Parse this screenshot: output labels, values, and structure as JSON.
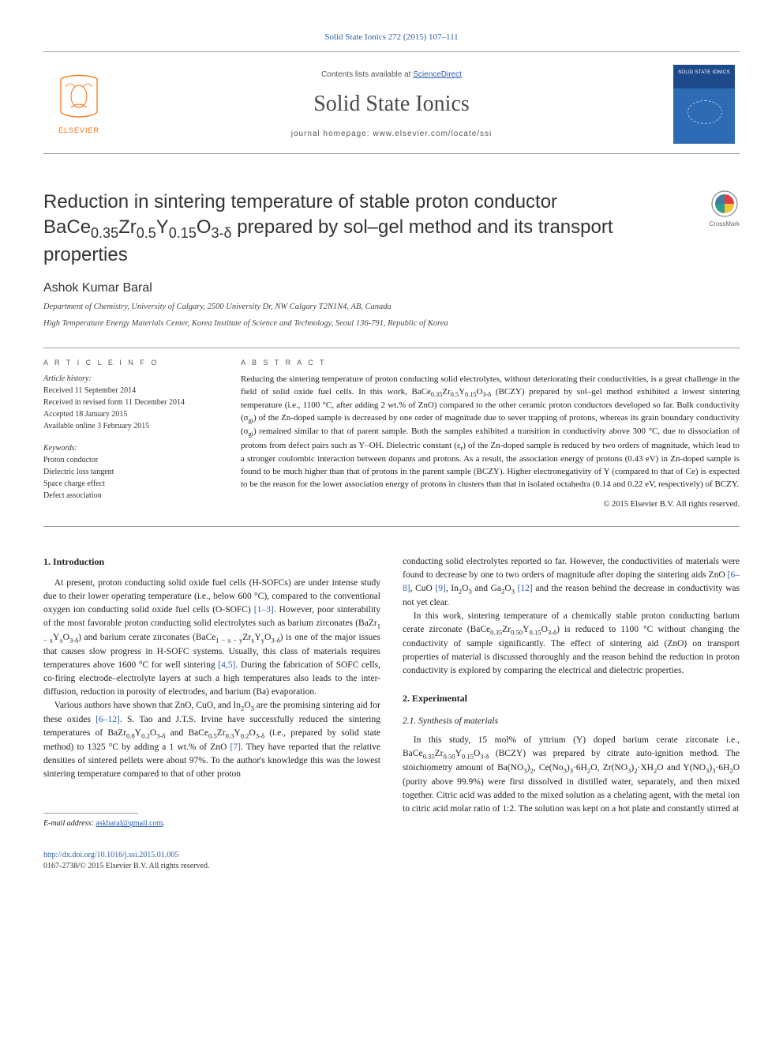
{
  "top_citation": "Solid State Ionics 272 (2015) 107–111",
  "masthead": {
    "contents_prefix": "Contents lists available at ",
    "contents_link": "ScienceDirect",
    "journal_name": "Solid State Ionics",
    "homepage_prefix": "journal homepage: ",
    "homepage_url": "www.elsevier.com/locate/ssi",
    "cover_label": "SOLID STATE IONICS"
  },
  "title_html": "Reduction in sintering temperature of stable proton conductor BaCe<sub>0.35</sub>Zr<sub>0.5</sub>Y<sub>0.15</sub>O<sub>3-δ</sub> prepared by sol–gel method and its transport properties",
  "crossmark_label": "CrossMark",
  "author": "Ashok Kumar Baral",
  "affiliations": [
    "Department of Chemistry, University of Calgary, 2500 University Dr, NW Calgary T2N1N4, AB, Canada",
    "High Temperature Energy Materials Center, Korea Institute of Science and Technology, Seoul 136-791, Republic of Korea"
  ],
  "info": {
    "heading": "A R T I C L E   I N F O",
    "history_label": "Article history:",
    "history": [
      "Received 11 September 2014",
      "Received in revised form 11 December 2014",
      "Accepted 18 January 2015",
      "Available online 3 February 2015"
    ],
    "keywords_label": "Keywords:",
    "keywords": [
      "Proton conductor",
      "Dielectric loss tangent",
      "Space charge effect",
      "Defect association"
    ]
  },
  "abstract": {
    "heading": "A B S T R A C T",
    "text_html": "Reducing the sintering temperature of proton conducting solid electrolytes, without deteriorating their conductivities, is a great challenge in the field of solid oxide fuel cells. In this work, BaCe<sub>0.35</sub>Zr<sub>0.5</sub>Y<sub>0.15</sub>O<sub>3-δ</sub> (BCZY) prepared by sol–gel method exhibited a lowest sintering temperature (i.e., 1100 °C, after adding 2 wt.% of ZnO) compared to the other ceramic proton conductors developed so far. Bulk conductivity (σ<sub>gi</sub>) of the Zn-doped sample is decreased by one order of magnitude due to sever trapping of protons, whereas its grain boundary conductivity (σ<sub>gi</sub>) remained similar to that of parent sample. Both the samples exhibited a transition in conductivity above 300 °C, due to dissociation of protons from defect pairs such as Y–OH. Dielectric constant (ε<sub>r</sub>) of the Zn-doped sample is reduced by two orders of magnitude, which lead to a stronger coulombic interaction between dopants and protons. As a result, the association energy of protons (0.43 eV) in Zn-doped sample is found to be much higher than that of protons in the parent sample (BCZY). Higher electronegativity of Y (compared to that of Ce) is expected to be the reason for the lower association energy of protons in clusters than that in isolated octahedra (0.14 and 0.22 eV, respectively) of BCZY.",
    "copyright": "© 2015 Elsevier B.V. All rights reserved."
  },
  "sections": {
    "intro_head": "1. Introduction",
    "intro_p1_html": "At present, proton conducting solid oxide fuel cells (H-SOFCs) are under intense study due to their lower operating temperature (i.e., below 600 °C), compared to the conventional oxygen ion conducting solid oxide fuel cells (O-SOFC) <span class=\"ref-link\">[1–3]</span>. However, poor sinterability of the most favorable proton conducting solid electrolytes such as barium zirconates (BaZr<sub>1 − x</sub>Y<sub>x</sub>O<sub>3-δ</sub>) and barium cerate zirconates (BaCe<sub>1 − x − y</sub>Zr<sub>x</sub>Y<sub>y</sub>O<sub>3-δ</sub>) is one of the major issues that causes slow progress in H-SOFC systems. Usually, this class of materials requires temperatures above 1600 °C for well sintering <span class=\"ref-link\">[4,5]</span>. During the fabrication of SOFC cells, co-firing electrode–electrolyte layers at such a high temperatures also leads to the inter-diffusion, reduction in porosity of electrodes, and barium (Ba) evaporation.",
    "intro_p2_html": "Various authors have shown that ZnO, CuO, and In<sub>2</sub>O<sub>3</sub> are the promising sintering aid for these oxides <span class=\"ref-link\">[6–12]</span>. S. Tao and J.T.S. Irvine have successfully reduced the sintering temperatures of BaZr<sub>0.8</sub>Y<sub>0.2</sub>O<sub>3-δ</sub> and BaCe<sub>0.5</sub>Zr<sub>0.3</sub>Y<sub>0.2</sub>O<sub>3-δ</sub> (i.e., prepared by solid state method) to 1325 °C by adding a 1 wt.% of ZnO <span class=\"ref-link\">[7]</span>. They have reported that the relative densities of sintered pellets were about 97%. To the author's knowledge this was the lowest sintering temperature compared to that of other proton",
    "col2_p1_html": "conducting solid electrolytes reported so far. However, the conductivities of materials were found to decrease by one to two orders of magnitude after doping the sintering aids ZnO <span class=\"ref-link\">[6–8]</span>, CuO <span class=\"ref-link\">[9]</span>, In<sub>2</sub>O<sub>3</sub> and Ga<sub>2</sub>O<sub>3</sub> <span class=\"ref-link\">[12]</span> and the reason behind the decrease in conductivity was not yet clear.",
    "col2_p2_html": "In this work, sintering temperature of a chemically stable proton conducting barium cerate zirconate (BaCe<sub>0.35</sub>Zr<sub>0.50</sub>Y<sub>0.15</sub>O<sub>3-δ</sub>) is reduced to 1100 °C without changing the conductivity of sample significantly. The effect of sintering aid (ZnO) on transport properties of material is discussed thoroughly and the reason behind the reduction in proton conductivity is explored by comparing the electrical and dielectric properties.",
    "exp_head": "2. Experimental",
    "synth_head": "2.1. Synthesis of materials",
    "synth_p1_html": "In this study, 15 mol% of yttrium (Y) doped barium cerate zirconate i.e., BaCe<sub>0.35</sub>Zr<sub>0.50</sub>Y<sub>0.15</sub>O<sub>3-δ</sub> (BCZY) was prepared by citrate auto-ignition method. The stoichiometry amount of Ba(NO<sub>3</sub>)<sub>2</sub>, Ce(No<sub>3</sub>)<sub>3</sub>·6H<sub>2</sub>O, Zr(NO<sub>3</sub>)<sub>2</sub>·XH<sub>2</sub>O and Y(NO<sub>3</sub>)<sub>3</sub>·6H<sub>2</sub>O (purity above 99.9%) were first dissolved in distilled water, separately, and then mixed together. Citric acid was added to the mixed solution as a chelating agent, with the metal ion to citric acid molar ratio of 1:2. The solution was kept on a hot plate and constantly stirred at"
  },
  "footer": {
    "email_label": "E-mail address: ",
    "email": "askbaral@gmail.com",
    "doi": "http://dx.doi.org/10.1016/j.ssi.2015.01.005",
    "issn_line": "0167-2738/© 2015 Elsevier B.V. All rights reserved."
  },
  "colors": {
    "link": "#2a5db0",
    "rule": "#999999",
    "text": "#222222",
    "elsevier_orange": "#ff6a00",
    "cover_blue_top": "#1e4a8c",
    "cover_blue_bottom": "#2d6bb5"
  }
}
